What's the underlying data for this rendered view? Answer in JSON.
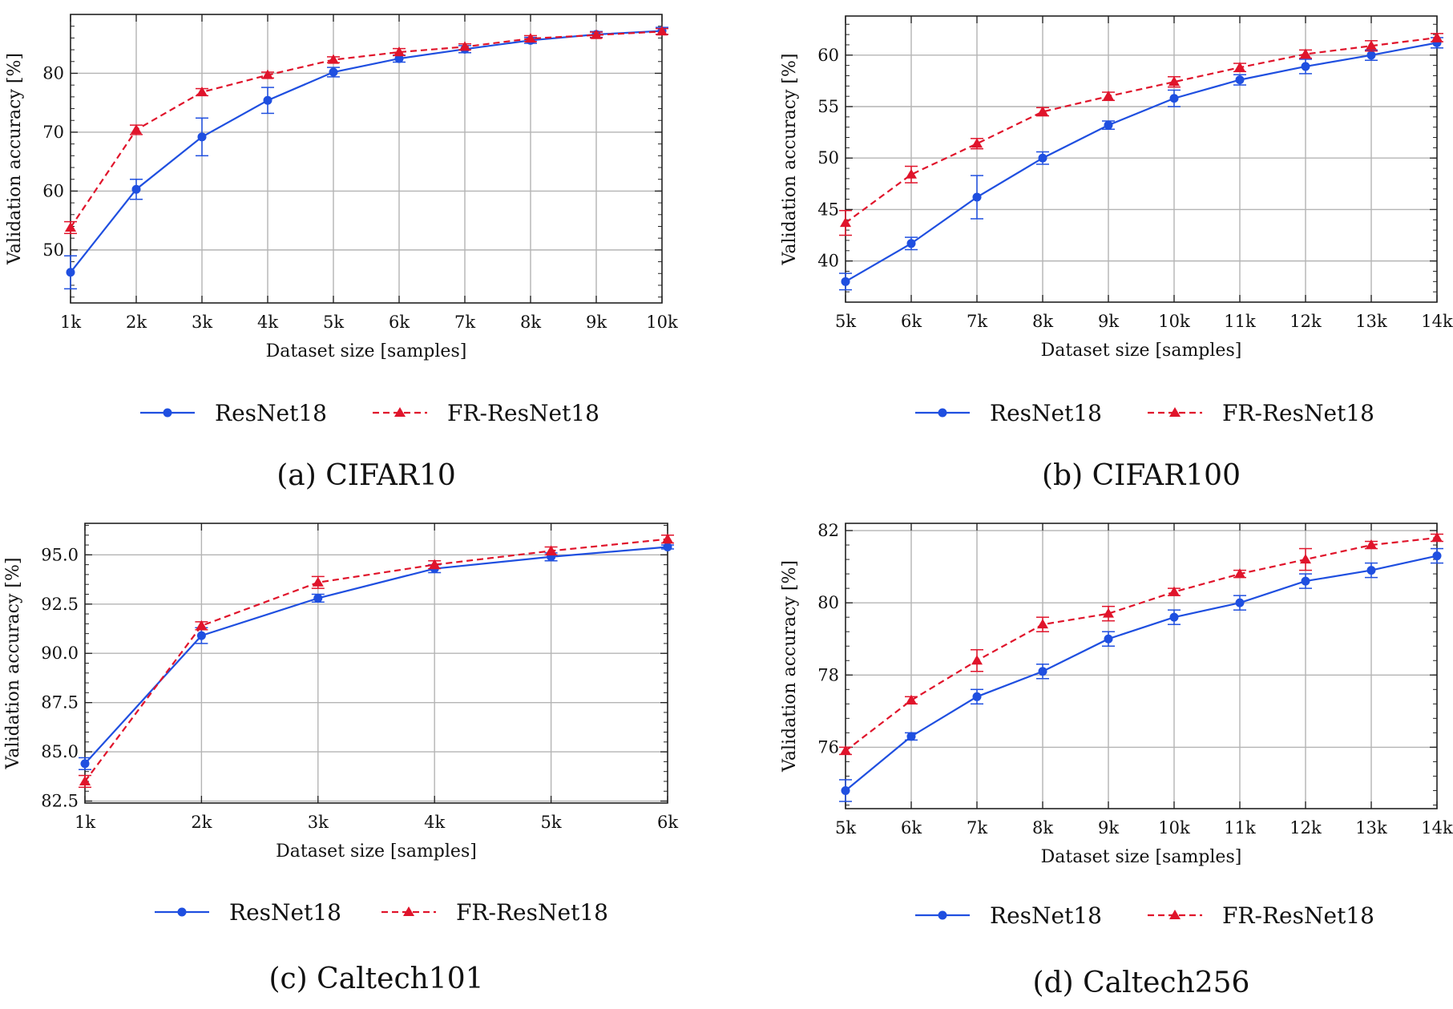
{
  "chart_data": [
    {
      "type": "line",
      "caption": "(a) CIFAR10",
      "xlabel": "Dataset size [samples]",
      "ylabel": "Validation accuracy [%]",
      "categories": [
        "1k",
        "2k",
        "3k",
        "4k",
        "5k",
        "6k",
        "7k",
        "8k",
        "9k",
        "10k"
      ],
      "ylim": [
        41,
        90
      ],
      "yticks": [
        50,
        60,
        70,
        80
      ],
      "ytick_labels": [
        "50",
        "60",
        "70",
        "80"
      ],
      "grid": true,
      "legend": "bottom",
      "series": [
        {
          "name": "ResNet18",
          "color": "#1f4fe0",
          "style": "solid",
          "marker": "circle",
          "values": [
            46.2,
            60.3,
            69.2,
            75.4,
            80.2,
            82.5,
            84.1,
            85.6,
            86.6,
            87.2
          ],
          "errors": [
            2.8,
            1.7,
            3.2,
            2.2,
            0.8,
            0.6,
            0.6,
            0.5,
            0.5,
            0.6
          ]
        },
        {
          "name": "FR-ResNet18",
          "color": "#e0142b",
          "style": "dashed",
          "marker": "triangle",
          "values": [
            53.8,
            70.4,
            76.8,
            79.7,
            82.3,
            83.6,
            84.5,
            85.9,
            86.5,
            87.1
          ],
          "errors": [
            1.0,
            0.8,
            0.6,
            0.5,
            0.5,
            0.6,
            0.5,
            0.5,
            0.5,
            0.5
          ]
        }
      ]
    },
    {
      "type": "line",
      "caption": "(b) CIFAR100",
      "xlabel": "Dataset size [samples]",
      "ylabel": "Validation accuracy [%]",
      "categories": [
        "5k",
        "6k",
        "7k",
        "8k",
        "9k",
        "10k",
        "11k",
        "12k",
        "13k",
        "14k"
      ],
      "ylim": [
        36,
        63.8
      ],
      "yticks": [
        40,
        45,
        50,
        55,
        60
      ],
      "ytick_labels": [
        "40",
        "45",
        "50",
        "55",
        "60"
      ],
      "grid": true,
      "legend": "bottom",
      "series": [
        {
          "name": "ResNet18",
          "color": "#1f4fe0",
          "style": "solid",
          "marker": "circle",
          "values": [
            38.0,
            41.7,
            46.2,
            50.0,
            53.2,
            55.8,
            57.6,
            58.9,
            60.0,
            61.2
          ],
          "errors": [
            0.8,
            0.6,
            2.1,
            0.6,
            0.4,
            0.8,
            0.5,
            0.7,
            0.5,
            0.5
          ]
        },
        {
          "name": "FR-ResNet18",
          "color": "#e0142b",
          "style": "dashed",
          "marker": "triangle",
          "values": [
            43.7,
            48.4,
            51.4,
            54.5,
            56.0,
            57.4,
            58.8,
            60.1,
            60.9,
            61.7
          ],
          "errors": [
            1.2,
            0.8,
            0.5,
            0.4,
            0.4,
            0.5,
            0.4,
            0.4,
            0.5,
            0.4
          ]
        }
      ]
    },
    {
      "type": "line",
      "caption": "(c) Caltech101",
      "xlabel": "Dataset size [samples]",
      "ylabel": "Validation accuracy [%]",
      "categories": [
        "1k",
        "2k",
        "3k",
        "4k",
        "5k",
        "6k"
      ],
      "ylim": [
        82.4,
        96.6
      ],
      "yticks": [
        82.5,
        85.0,
        87.5,
        90.0,
        92.5,
        95.0
      ],
      "ytick_labels": [
        "82.5",
        "85.0",
        "87.5",
        "90.0",
        "92.5",
        "95.0"
      ],
      "grid": true,
      "legend": "bottom",
      "series": [
        {
          "name": "ResNet18",
          "color": "#1f4fe0",
          "style": "solid",
          "marker": "circle",
          "values": [
            84.4,
            90.9,
            92.8,
            94.3,
            94.9,
            95.4
          ],
          "errors": [
            0.3,
            0.4,
            0.2,
            0.2,
            0.2,
            0.1
          ]
        },
        {
          "name": "FR-ResNet18",
          "color": "#e0142b",
          "style": "dashed",
          "marker": "triangle",
          "values": [
            83.5,
            91.4,
            93.6,
            94.5,
            95.2,
            95.8
          ],
          "errors": [
            0.3,
            0.2,
            0.3,
            0.2,
            0.2,
            0.2
          ]
        }
      ]
    },
    {
      "type": "line",
      "caption": "(d) Caltech256",
      "xlabel": "Dataset size [samples]",
      "ylabel": "Validation accuracy [%]",
      "categories": [
        "5k",
        "6k",
        "7k",
        "8k",
        "9k",
        "10k",
        "11k",
        "12k",
        "13k",
        "14k"
      ],
      "ylim": [
        74.3,
        82.2
      ],
      "yticks": [
        76,
        78,
        80,
        82
      ],
      "ytick_labels": [
        "76",
        "78",
        "80",
        "82"
      ],
      "grid": true,
      "legend": "bottom",
      "series": [
        {
          "name": "ResNet18",
          "color": "#1f4fe0",
          "style": "solid",
          "marker": "circle",
          "values": [
            74.8,
            76.3,
            77.4,
            78.1,
            79.0,
            79.6,
            80.0,
            80.6,
            80.9,
            81.3
          ],
          "errors": [
            0.3,
            0.1,
            0.2,
            0.2,
            0.2,
            0.2,
            0.2,
            0.2,
            0.2,
            0.2
          ]
        },
        {
          "name": "FR-ResNet18",
          "color": "#e0142b",
          "style": "dashed",
          "marker": "triangle",
          "values": [
            75.9,
            77.3,
            78.4,
            79.4,
            79.7,
            80.3,
            80.8,
            81.2,
            81.6,
            81.8
          ],
          "errors": [
            0.1,
            0.1,
            0.3,
            0.2,
            0.2,
            0.1,
            0.1,
            0.3,
            0.1,
            0.1
          ]
        }
      ]
    }
  ]
}
